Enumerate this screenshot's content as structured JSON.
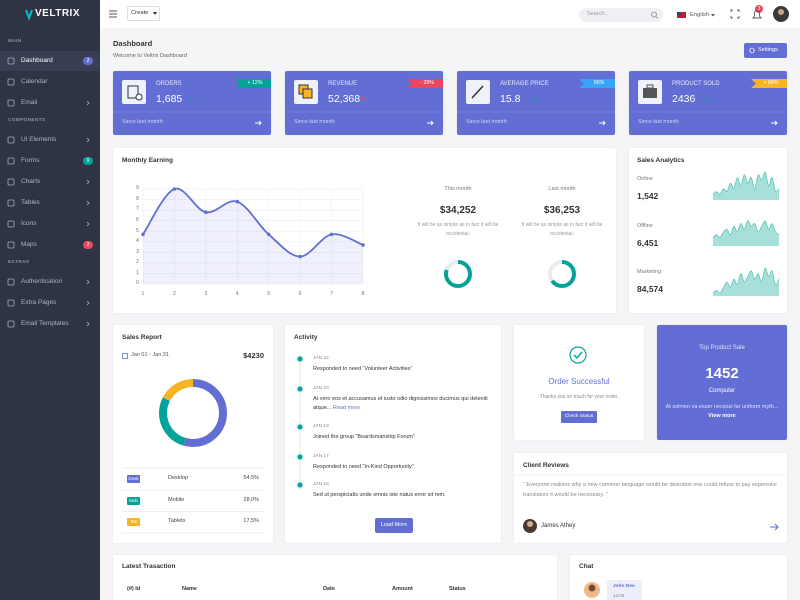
{
  "brand": "VELTRIX",
  "sidebar": [
    {
      "heading": "MAIN",
      "items": [
        {
          "label": "Dashboard",
          "badge": 2,
          "badge_color": "#626ed4",
          "active": true
        },
        {
          "label": "Calendar"
        },
        {
          "label": "Email",
          "submenu": true
        }
      ]
    },
    {
      "heading": "COMPONENTS",
      "items": [
        {
          "label": "UI Elements",
          "submenu": true
        },
        {
          "label": "Forms",
          "badge": 9,
          "badge_color": "#02a499"
        },
        {
          "label": "Charts",
          "submenu": true
        },
        {
          "label": "Tables",
          "submenu": true
        },
        {
          "label": "Icons",
          "submenu": true
        },
        {
          "label": "Maps",
          "badge": 2,
          "badge_color": "#ec4561"
        }
      ]
    },
    {
      "heading": "EXTRAS",
      "items": [
        {
          "label": "Authentication",
          "submenu": true
        },
        {
          "label": "Extra Pages",
          "submenu": true
        },
        {
          "label": "Email Templates",
          "submenu": true
        }
      ]
    }
  ],
  "topbar": {
    "create": "Create",
    "search": "Search..",
    "language": "English",
    "notifications": 3
  },
  "header": {
    "title": "Dashboard",
    "subtitle": "Welcome to Veltrix Dashboard",
    "settings": "Settings"
  },
  "stats": {
    "footer": "Since last month",
    "cards": [
      {
        "title": "ORDERS",
        "value": "1,685",
        "change": "+ 12%",
        "color": "#02a499",
        "trend": "up"
      },
      {
        "title": "REVENUE",
        "value": "52,368",
        "change": "- 28%",
        "color": "#ec4561",
        "trend": "down"
      },
      {
        "title": "AVERAGE PRICE",
        "value": "15.8",
        "change": "00%",
        "color": "#38a4f8",
        "trend": "up"
      },
      {
        "title": "PRODUCT SOLD",
        "value": "2436",
        "change": "+ 84%",
        "color": "#f8b425",
        "trend": "up"
      }
    ]
  },
  "chart_data": [
    {
      "type": "line",
      "title": "Monthly Earning",
      "x": [
        1,
        2,
        3,
        4,
        5,
        6,
        7,
        8
      ],
      "values": [
        4.7,
        9,
        6.8,
        7.8,
        4.7,
        2.6,
        4.7,
        3.7
      ],
      "color": "#626ed4",
      "xlim": [
        1,
        8
      ],
      "xticks": [
        1,
        2,
        3,
        4,
        5,
        6,
        7,
        8
      ],
      "ylim": [
        0,
        9
      ],
      "yticks": [
        0,
        1,
        2,
        3,
        4,
        5,
        6,
        7,
        8,
        9
      ],
      "grid": true
    },
    {
      "type": "sparkline",
      "title": "Sales Analytics",
      "color": "#5cc6b8",
      "ylim": [
        0,
        10
      ],
      "series": [
        {
          "name": "Online",
          "total": "1,542",
          "values": [
            2,
            3,
            2,
            4,
            3,
            6,
            4,
            8,
            5,
            9,
            6,
            8,
            4,
            9,
            7,
            10,
            5,
            8,
            3,
            4
          ]
        },
        {
          "name": "Offline",
          "total": "6,451",
          "values": [
            3,
            4,
            3,
            5,
            6,
            4,
            7,
            5,
            8,
            6,
            9,
            7,
            8,
            5,
            7,
            9,
            6,
            8,
            5,
            4
          ]
        },
        {
          "name": "Marketing",
          "total": "84,574",
          "values": [
            1,
            2,
            1,
            3,
            5,
            3,
            6,
            4,
            8,
            5,
            7,
            9,
            6,
            8,
            5,
            10,
            7,
            9,
            4,
            6
          ]
        }
      ]
    },
    {
      "type": "donut",
      "title": "Sales Report",
      "period": "Jan 01 - Jan 31",
      "total": "$4230",
      "categories": [
        "Desktop",
        "Mobile",
        "Tablets"
      ],
      "tags": [
        "Desk",
        "Mob",
        "Tab"
      ],
      "values": [
        54.5,
        28.0,
        17.5
      ],
      "value_labels": [
        "54.5%",
        "28.0%",
        "17.5%"
      ],
      "colors": [
        "#626ed4",
        "#02a499",
        "#f8b425"
      ]
    },
    {
      "type": "progress",
      "categories": [
        "This month",
        "Last month"
      ],
      "amounts": [
        "$34,252",
        "$36,253"
      ],
      "note": "It will be as simple as in fact it will be occidental.",
      "values": [
        80,
        65
      ],
      "color": "#02a499"
    }
  ],
  "activity": {
    "title": "Activity",
    "button": "Load More",
    "items": [
      {
        "date": "JAN 22",
        "text": "Responded to need “Volunteer Activities”"
      },
      {
        "date": "JAN 20",
        "text": "At vero eos et accusamus et iusto odio dignissimos ducimus qui deleniti atque...",
        "link": "Read more"
      },
      {
        "date": "JAN 19",
        "text": "Joined the group “Boardsmanship Forum”"
      },
      {
        "date": "JAN 17",
        "text": "Responded to need “In-Kind Opportunity”"
      },
      {
        "date": "JAN 16",
        "text": "Sed ut perspiciatis unde omnis iste natus error sit rem."
      }
    ]
  },
  "order": {
    "title": "Order Successful",
    "text": "Thanks you so much for your order.",
    "button": "Check Status"
  },
  "top_product": {
    "title": "Top Product Sale",
    "value": 1452,
    "name": "Computer",
    "text": "At solmen va esser necessi far uniform myth...",
    "link": "View more"
  },
  "reviews": {
    "title": "Client Reviews",
    "quote": "“ Everyone realizes why a new common language would be desirable one could refuse to pay expensive translators it would be necessary. ”",
    "author": "James Athey"
  },
  "transactions": {
    "title": "Latest Trasaction",
    "columns": [
      "(#) Id",
      "Name",
      "Date",
      "Amount",
      "Status"
    ]
  },
  "chat": {
    "title": "Chat",
    "messages": [
      {
        "name": "John Deo",
        "time": "12:09"
      }
    ]
  }
}
